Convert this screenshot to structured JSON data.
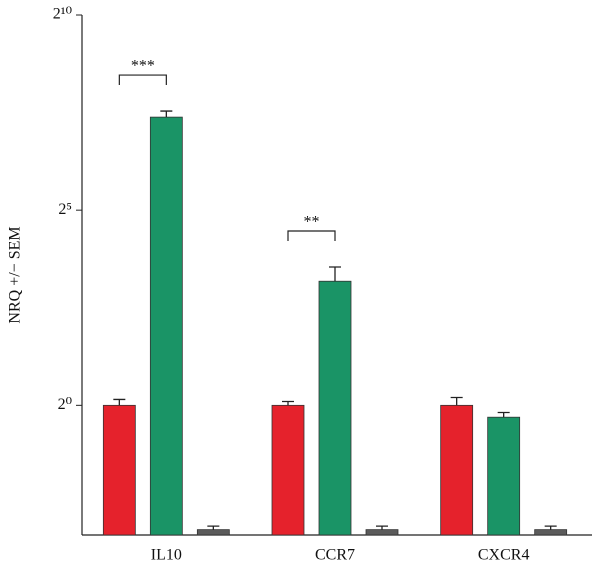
{
  "chart_data": {
    "type": "bar",
    "y_label": "NRQ +/− SEM",
    "categories": [
      "IL10",
      "CCR7",
      "CXCR4"
    ],
    "series": [
      {
        "color": "#e5222c",
        "values": [
          1,
          1,
          1
        ],
        "errors": [
          0.11,
          0.07,
          0.15
        ]
      },
      {
        "color": "#1a9466",
        "values": [
          167,
          9.06,
          0.81
        ],
        "errors": [
          19,
          2.6,
          0.07
        ]
      },
      {
        "color": "#5b5b5b",
        "values": [
          0.11,
          0.11,
          0.11
        ],
        "errors": [
          0.007,
          0.007,
          0.007
        ]
      }
    ],
    "log_scale": "log2",
    "ylim": [
      0.1,
      1024
    ],
    "yticks": [
      {
        "value": 1,
        "label": "2⁰"
      },
      {
        "value": 32,
        "label": "2⁵"
      },
      {
        "value": 1024,
        "label": "2¹⁰"
      }
    ],
    "significance": [
      {
        "category": "IL10",
        "label": "***"
      },
      {
        "category": "CCR7",
        "label": "**"
      }
    ]
  }
}
